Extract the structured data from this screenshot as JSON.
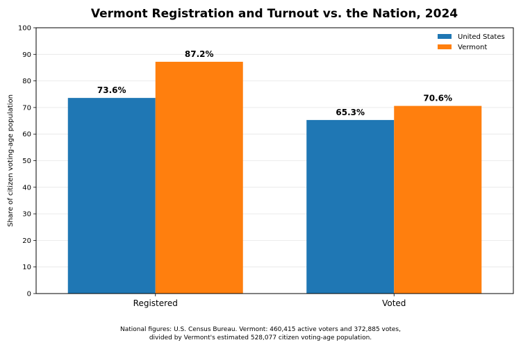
{
  "chart_data": {
    "type": "bar",
    "title": "Vermont Registration and Turnout vs. the Nation, 2024",
    "ylabel": "Share of citizen voting-age population",
    "xlabel": "",
    "categories": [
      "Registered",
      "Voted"
    ],
    "series": [
      {
        "name": "United States",
        "values": [
          73.6,
          65.3
        ],
        "labels": [
          "73.6%",
          "65.3%"
        ],
        "color": "#1f77b4"
      },
      {
        "name": "Vermont",
        "values": [
          87.2,
          70.6
        ],
        "labels": [
          "87.2%",
          "70.6%"
        ],
        "color": "#ff7f0e"
      }
    ],
    "ylim": [
      0,
      100
    ],
    "yticks": [
      0,
      10,
      20,
      30,
      40,
      50,
      60,
      70,
      80,
      90,
      100
    ],
    "grid": "horizontal, light",
    "legend_position": "top-right"
  },
  "footnote": {
    "line1": "National figures: U.S. Census Bureau. Vermont: 460,415 active voters and 372,885 votes,",
    "line2": "divided by Vermont's estimated 528,077 citizen voting-age population."
  }
}
